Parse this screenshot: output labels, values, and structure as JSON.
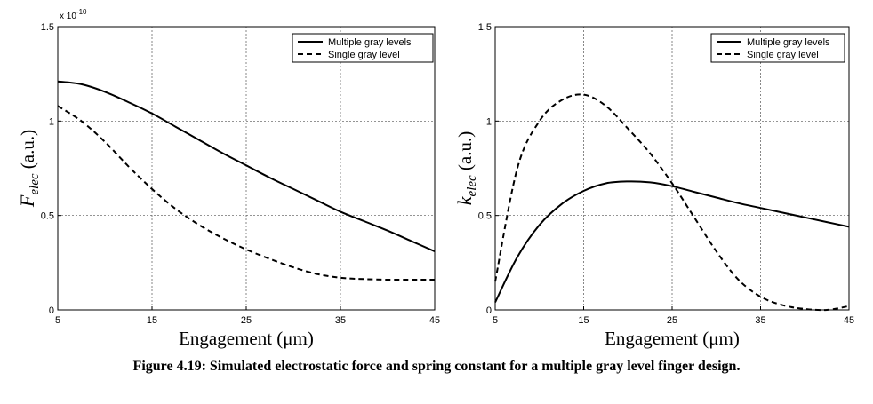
{
  "caption": "Figure 4.19: Simulated electrostatic force and spring constant for a multiple gray level finger design.",
  "chart_data": [
    {
      "type": "line",
      "ylabel_main": "F",
      "ylabel_sub": "elec",
      "ylabel_unit": " (a.u.)",
      "xlabel": "Engagement (μm)",
      "xlim": [
        5,
        45
      ],
      "ylim": [
        0,
        1.5
      ],
      "xticks": [
        5,
        15,
        25,
        35,
        45
      ],
      "yticks": [
        0,
        0.5,
        1,
        1.5
      ],
      "ytick_labels": [
        "0",
        "0.5",
        "1",
        "1.5"
      ],
      "exponent_label": "x 10",
      "exponent_power": "-10",
      "grid": true,
      "legend_position": "top-right",
      "x": [
        5,
        7.5,
        10,
        12.5,
        15,
        17.5,
        20,
        22.5,
        25,
        27.5,
        30,
        32.5,
        35,
        37.5,
        40,
        42.5,
        45
      ],
      "series": [
        {
          "name": "Multiple gray levels",
          "style": "solid",
          "values": [
            1.21,
            1.195,
            1.155,
            1.1,
            1.04,
            0.97,
            0.9,
            0.83,
            0.765,
            0.7,
            0.64,
            0.58,
            0.52,
            0.47,
            0.42,
            0.365,
            0.31
          ]
        },
        {
          "name": "Single gray level",
          "style": "dashed",
          "values": [
            1.08,
            1.0,
            0.89,
            0.76,
            0.64,
            0.535,
            0.45,
            0.38,
            0.32,
            0.27,
            0.225,
            0.19,
            0.17,
            0.163,
            0.16,
            0.16,
            0.16
          ]
        }
      ]
    },
    {
      "type": "line",
      "ylabel_main": "k",
      "ylabel_sub": "elec",
      "ylabel_unit": " (a.u.)",
      "xlabel": "Engagement (μm)",
      "xlim": [
        5,
        45
      ],
      "ylim": [
        0,
        1.5
      ],
      "xticks": [
        5,
        15,
        25,
        35,
        45
      ],
      "yticks": [
        0,
        0.5,
        1,
        1.5
      ],
      "ytick_labels": [
        "0",
        "0.5",
        "1",
        "1.5"
      ],
      "grid": true,
      "legend_position": "top-right",
      "x": [
        5,
        7.5,
        10,
        12.5,
        15,
        17.5,
        20,
        22.5,
        25,
        27.5,
        30,
        32.5,
        35,
        37.5,
        40,
        42.5,
        45
      ],
      "series": [
        {
          "name": "Multiple gray levels",
          "style": "solid",
          "values": [
            0.04,
            0.28,
            0.45,
            0.56,
            0.63,
            0.67,
            0.68,
            0.675,
            0.655,
            0.625,
            0.595,
            0.565,
            0.54,
            0.515,
            0.49,
            0.465,
            0.44
          ]
        },
        {
          "name": "Single gray level",
          "style": "dashed",
          "values": [
            0.15,
            0.75,
            1.0,
            1.11,
            1.14,
            1.08,
            0.96,
            0.83,
            0.67,
            0.49,
            0.31,
            0.16,
            0.07,
            0.025,
            0.005,
            0.0,
            0.02
          ]
        }
      ]
    }
  ]
}
